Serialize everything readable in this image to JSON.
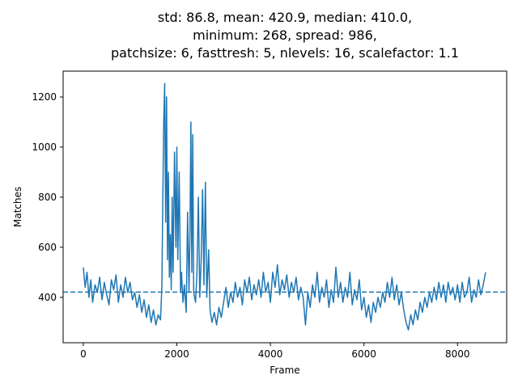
{
  "chart_data": {
    "type": "line",
    "title": "std: 86.8, mean: 420.9, median: 410.0,\nminimum: 268, spread: 986,\npatchsize: 6, fasttresh: 5, nlevels: 16, scalefactor: 1.1",
    "x_label": "Frame",
    "y_label": "Matches",
    "color": "#1f77b4",
    "hline": 420.9,
    "hline_style": "dashed",
    "xlim": [
      -431,
      9051
    ],
    "ylim": [
      218.7,
      1303.3
    ],
    "xticks": [
      0,
      2000,
      4000,
      6000,
      8000
    ],
    "yticks": [
      400,
      600,
      800,
      1000,
      1200
    ],
    "x": [
      0,
      40,
      80,
      120,
      160,
      200,
      250,
      300,
      350,
      400,
      450,
      500,
      550,
      600,
      650,
      700,
      750,
      800,
      850,
      900,
      950,
      1000,
      1050,
      1100,
      1150,
      1200,
      1250,
      1300,
      1350,
      1400,
      1450,
      1500,
      1550,
      1600,
      1650,
      1680,
      1700,
      1720,
      1740,
      1760,
      1780,
      1800,
      1820,
      1840,
      1860,
      1880,
      1900,
      1920,
      1950,
      1980,
      2000,
      2020,
      2050,
      2080,
      2100,
      2130,
      2160,
      2200,
      2230,
      2260,
      2280,
      2300,
      2320,
      2340,
      2360,
      2400,
      2430,
      2460,
      2490,
      2520,
      2550,
      2580,
      2610,
      2640,
      2680,
      2710,
      2750,
      2800,
      2850,
      2900,
      2950,
      3000,
      3050,
      3100,
      3150,
      3200,
      3250,
      3300,
      3350,
      3400,
      3450,
      3500,
      3550,
      3600,
      3650,
      3700,
      3750,
      3800,
      3850,
      3900,
      3950,
      4000,
      4050,
      4100,
      4150,
      4200,
      4250,
      4300,
      4350,
      4400,
      4450,
      4500,
      4550,
      4600,
      4650,
      4700,
      4750,
      4800,
      4850,
      4900,
      4950,
      5000,
      5050,
      5100,
      5150,
      5200,
      5250,
      5300,
      5350,
      5400,
      5450,
      5500,
      5550,
      5600,
      5650,
      5700,
      5750,
      5800,
      5850,
      5900,
      5950,
      6000,
      6050,
      6100,
      6150,
      6200,
      6250,
      6300,
      6350,
      6400,
      6450,
      6500,
      6550,
      6600,
      6650,
      6700,
      6750,
      6800,
      6850,
      6900,
      6950,
      7000,
      7050,
      7100,
      7150,
      7200,
      7250,
      7300,
      7350,
      7400,
      7450,
      7500,
      7550,
      7600,
      7650,
      7700,
      7750,
      7800,
      7850,
      7900,
      7950,
      8000,
      8050,
      8100,
      8150,
      8200,
      8250,
      8300,
      8350,
      8400,
      8450,
      8500,
      8550,
      8600
    ],
    "values": [
      520,
      440,
      500,
      400,
      470,
      380,
      450,
      420,
      480,
      390,
      460,
      410,
      370,
      470,
      430,
      490,
      380,
      450,
      400,
      480,
      420,
      460,
      390,
      420,
      360,
      410,
      340,
      390,
      320,
      370,
      300,
      350,
      290,
      330,
      310,
      440,
      800,
      1100,
      1254,
      700,
      1200,
      550,
      900,
      480,
      650,
      430,
      800,
      500,
      980,
      600,
      1000,
      550,
      900,
      420,
      500,
      380,
      450,
      340,
      740,
      420,
      650,
      1100,
      500,
      1050,
      420,
      380,
      500,
      800,
      400,
      550,
      830,
      450,
      860,
      400,
      590,
      350,
      300,
      340,
      290,
      360,
      320,
      380,
      440,
      360,
      420,
      380,
      460,
      400,
      440,
      370,
      470,
      420,
      480,
      390,
      450,
      410,
      470,
      400,
      500,
      420,
      460,
      380,
      500,
      440,
      530,
      410,
      470,
      430,
      490,
      400,
      460,
      420,
      480,
      390,
      440,
      400,
      290,
      420,
      360,
      450,
      400,
      500,
      380,
      440,
      400,
      470,
      360,
      430,
      380,
      520,
      400,
      460,
      380,
      440,
      400,
      500,
      370,
      430,
      390,
      470,
      350,
      400,
      320,
      370,
      300,
      380,
      340,
      400,
      360,
      420,
      380,
      460,
      400,
      480,
      390,
      450,
      370,
      420,
      350,
      300,
      270,
      330,
      290,
      350,
      310,
      380,
      340,
      400,
      360,
      420,
      380,
      440,
      390,
      460,
      400,
      450,
      380,
      460,
      410,
      440,
      390,
      450,
      380,
      460,
      400,
      420,
      480,
      380,
      430,
      400,
      470,
      410,
      450,
      500
    ]
  }
}
